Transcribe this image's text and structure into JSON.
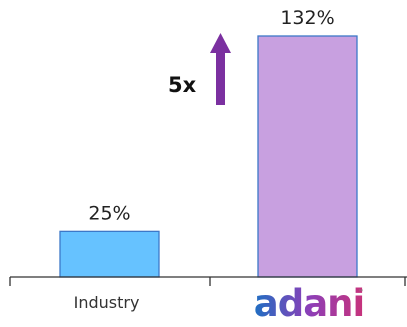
{
  "chart_data": {
    "type": "bar",
    "categories": [
      "Industry",
      "adani"
    ],
    "values": [
      25,
      132
    ],
    "data_labels": [
      "25%",
      "132%"
    ],
    "ylim": [
      0,
      140
    ],
    "grid": false,
    "colors": {
      "bars": [
        "#66c2ff",
        "#c8a0e0"
      ],
      "bar_edges": [
        "#3c78c8",
        "#3c78c8"
      ],
      "arrow": "#7b30a0",
      "axis": "#333333"
    },
    "annotation": {
      "text": "5x",
      "type": "up-arrow"
    },
    "logo": {
      "text": "adani",
      "colors": [
        "#1f6fc2",
        "#8c3fb8",
        "#c8327a"
      ]
    }
  }
}
